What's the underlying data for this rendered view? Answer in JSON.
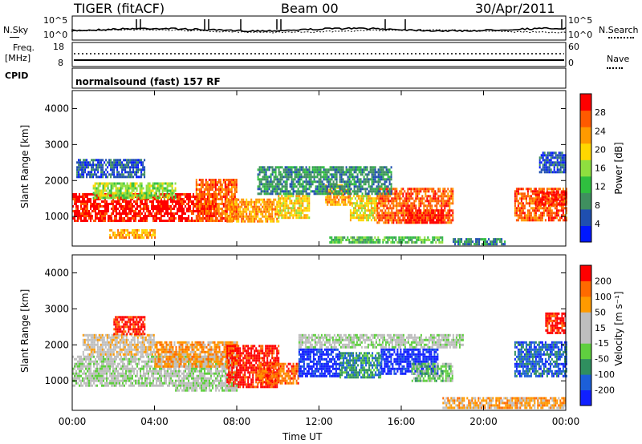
{
  "header": {
    "radar": "TIGER (fitACF)",
    "beam": "Beam 00",
    "date": "30/Apr/2011"
  },
  "strip_panels": {
    "nsky_label": "N.Sky",
    "nsearch_label": "N.Search",
    "noise_ticks_left": [
      "10^5",
      "10^0"
    ],
    "noise_ticks_right": [
      "10^5",
      "10^0"
    ],
    "freq_label_1": "Freq.",
    "freq_label_2": "[MHz]",
    "freq_ticks": [
      "18",
      "8"
    ],
    "nave_label": "Nave",
    "nave_ticks": [
      "60",
      "0"
    ],
    "cpid_label": "CPID",
    "cpid_text": "normalsound (fast) 157 RF"
  },
  "colors": {
    "power_scale": [
      "#0018ff",
      "#1f4fb0",
      "#3f8f5f",
      "#2fbf3f",
      "#8fdf3f",
      "#ffd700",
      "#ff9a00",
      "#ff5a00",
      "#ff0000"
    ],
    "velocity_scale": [
      "#1020ff",
      "#1c5fd8",
      "#2f8f5f",
      "#5fcf3f",
      "#bebebe",
      "#bebebe",
      "#ff9a00",
      "#ff6a00",
      "#ff0000"
    ]
  },
  "chart_data": [
    {
      "type": "heatmap",
      "panel": "power",
      "ylabel": "Slant Range [km]",
      "ylim": [
        180,
        4500
      ],
      "yticks": [
        "4000",
        "3000",
        "2000",
        "1000"
      ],
      "xlim": [
        0,
        24
      ],
      "colorbar_label": "Power [dB]",
      "colorbar_ticks": [
        "28",
        "24",
        "20",
        "16",
        "12",
        "8",
        "4"
      ],
      "regions": [
        {
          "t0": 0.0,
          "t1": 7.0,
          "r0": 850,
          "r1": 1650,
          "level": 8
        },
        {
          "t0": 1.0,
          "t1": 5.0,
          "r0": 1500,
          "r1": 1950,
          "level": 4
        },
        {
          "t0": 0.2,
          "t1": 3.5,
          "r0": 2100,
          "r1": 2600,
          "level": 1
        },
        {
          "t0": 6.0,
          "t1": 8.0,
          "r0": 900,
          "r1": 2050,
          "level": 7
        },
        {
          "t0": 7.5,
          "t1": 10.0,
          "r0": 850,
          "r1": 1500,
          "level": 6
        },
        {
          "t0": 10.0,
          "t1": 11.5,
          "r0": 950,
          "r1": 1600,
          "level": 5
        },
        {
          "t0": 12.3,
          "t1": 13.5,
          "r0": 1300,
          "r1": 1900,
          "level": 6
        },
        {
          "t0": 13.5,
          "t1": 14.8,
          "r0": 900,
          "r1": 1600,
          "level": 5
        },
        {
          "t0": 14.8,
          "t1": 18.5,
          "r0": 850,
          "r1": 1800,
          "level": 7
        },
        {
          "t0": 16.2,
          "t1": 18.0,
          "r0": 850,
          "r1": 1200,
          "level": 8
        },
        {
          "t0": 12.5,
          "t1": 18.0,
          "r0": 250,
          "r1": 450,
          "level": 3
        },
        {
          "t0": 1.8,
          "t1": 4.0,
          "r0": 400,
          "r1": 650,
          "level": 6
        },
        {
          "t0": 21.5,
          "t1": 24.0,
          "r0": 900,
          "r1": 1800,
          "level": 7
        },
        {
          "t0": 22.5,
          "t1": 24.0,
          "r0": 1300,
          "r1": 1700,
          "level": 8
        },
        {
          "t0": 22.7,
          "t1": 24.0,
          "r0": 2200,
          "r1": 2800,
          "level": 1
        },
        {
          "t0": 9.0,
          "t1": 15.5,
          "r0": 1600,
          "r1": 2400,
          "level": 2
        },
        {
          "t0": 18.5,
          "t1": 21.0,
          "r0": 250,
          "r1": 400,
          "level": 2
        }
      ]
    },
    {
      "type": "heatmap",
      "panel": "velocity",
      "ylabel": "Slant Range [km]",
      "ylim": [
        180,
        4500
      ],
      "yticks": [
        "4000",
        "3000",
        "2000",
        "1000"
      ],
      "xlim": [
        0,
        24
      ],
      "xlabel": "Time UT",
      "xticks": [
        "00:00",
        "04:00",
        "08:00",
        "12:00",
        "16:00",
        "20:00",
        "00:00"
      ],
      "colorbar_label": "Velocity [m s⁻¹]",
      "colorbar_ticks": [
        "200",
        "100",
        "50",
        "15",
        "-15",
        "-50",
        "-100",
        "-200"
      ],
      "regions": [
        {
          "t0": 0.0,
          "t1": 8.0,
          "r0": 850,
          "r1": 1700,
          "level": 4
        },
        {
          "t0": 0.5,
          "t1": 4.0,
          "r0": 1700,
          "r1": 2300,
          "level": 5
        },
        {
          "t0": 4.0,
          "t1": 8.0,
          "r0": 1400,
          "r1": 2100,
          "level": 6
        },
        {
          "t0": 7.5,
          "t1": 10.0,
          "r0": 850,
          "r1": 2000,
          "level": 8
        },
        {
          "t0": 9.0,
          "t1": 11.0,
          "r0": 900,
          "r1": 1500,
          "level": 7
        },
        {
          "t0": 11.0,
          "t1": 13.0,
          "r0": 1100,
          "r1": 1900,
          "level": 0
        },
        {
          "t0": 13.0,
          "t1": 15.0,
          "r0": 1100,
          "r1": 1800,
          "level": 2
        },
        {
          "t0": 15.0,
          "t1": 17.8,
          "r0": 1200,
          "r1": 1900,
          "level": 0
        },
        {
          "t0": 16.5,
          "t1": 18.5,
          "r0": 1000,
          "r1": 1500,
          "level": 3
        },
        {
          "t0": 18.0,
          "t1": 24.0,
          "r0": 250,
          "r1": 550,
          "level": 6
        },
        {
          "t0": 11.0,
          "t1": 19.0,
          "r0": 1900,
          "r1": 2300,
          "level": 4
        },
        {
          "t0": 21.5,
          "t1": 24.0,
          "r0": 1100,
          "r1": 2100,
          "level": 1
        },
        {
          "t0": 23.0,
          "t1": 24.0,
          "r0": 2300,
          "r1": 2900,
          "level": 8
        },
        {
          "t0": 2.0,
          "t1": 3.5,
          "r0": 2300,
          "r1": 2800,
          "level": 8
        },
        {
          "t0": 5.0,
          "t1": 8.0,
          "r0": 700,
          "r1": 900,
          "level": 4
        }
      ]
    }
  ]
}
